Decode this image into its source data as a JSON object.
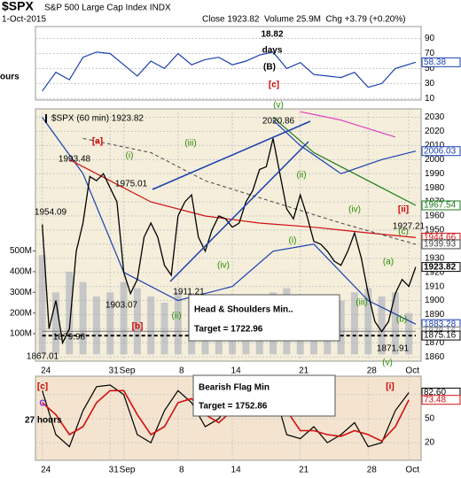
{
  "header": {
    "symbol": "$SPX",
    "name": "S&P 500 Large Cap Index INDX",
    "date": "1-Oct-2015",
    "stats": "Close 1923.82  Volume 25.9M  Chg +3.79 (+0.20%)"
  },
  "chart_data": [
    {
      "type": "line",
      "background": "#ffffff",
      "grid": true,
      "xlim": [
        -0.5,
        27.9
      ],
      "ylim": [
        8,
        106
      ],
      "yticks": [
        90,
        70,
        50,
        30,
        10
      ],
      "series": [
        {
          "color": "#1a3fb0",
          "width": 1.2,
          "tag": true,
          "x": [
            0,
            1,
            2,
            3,
            4,
            5,
            6,
            7,
            8,
            9,
            10,
            11,
            12,
            13,
            14,
            15,
            16,
            17,
            18,
            19,
            20,
            21,
            22,
            23,
            24,
            25,
            26,
            27.5
          ],
          "values": [
            20,
            45,
            35,
            65,
            72,
            70,
            55,
            40,
            60,
            50,
            70,
            55,
            62,
            65,
            55,
            60,
            68,
            72,
            50,
            58,
            42,
            40,
            38,
            45,
            25,
            30,
            50,
            58.38
          ]
        }
      ],
      "annotations": [
        {
          "text": "18.82",
          "color": "#000000"
        },
        {
          "text": "days",
          "color": "#000000"
        },
        {
          "text": "(B)",
          "color": "#000000"
        },
        {
          "text": "[c]",
          "color": "#cc0000"
        },
        {
          "text": "ours",
          "color": "#000000"
        },
        {
          "text": "(v)",
          "color": "#2a8a00"
        }
      ]
    },
    {
      "type": "line",
      "background": "#f4eedb",
      "grid": true,
      "xlim": [
        -0.5,
        27.9
      ],
      "ylim": [
        1857,
        2036
      ],
      "yticks": [
        2030,
        2020,
        2010,
        2000,
        1990,
        1980,
        1970,
        1960,
        1950,
        1940,
        1930,
        1920,
        1910,
        1900,
        1890,
        1880,
        1870,
        1860
      ],
      "y2lim": [
        -33000000,
        1188000000
      ],
      "y2ticks": [
        {
          "value": 500000000,
          "label": "500M"
        },
        {
          "value": 400000000,
          "label": "400M"
        },
        {
          "value": 300000000,
          "label": "300M"
        },
        {
          "value": 200000000,
          "label": "200M"
        },
        {
          "value": 100000000,
          "label": "100M"
        }
      ],
      "xticks": [
        {
          "value": 0,
          "label": "24"
        },
        {
          "value": 5,
          "label": "31"
        },
        {
          "value": 6,
          "label": "Sep"
        },
        {
          "value": 10,
          "label": "8"
        },
        {
          "value": 14,
          "label": "14"
        },
        {
          "value": 19,
          "label": "21"
        },
        {
          "value": 24,
          "label": "28"
        },
        {
          "value": 27,
          "label": "Oct"
        }
      ],
      "series": [
        {
          "type": "bar",
          "axis": "y2",
          "color": "#a7adb8",
          "x": [
            0,
            1,
            2,
            3,
            4,
            5,
            6,
            7,
            8,
            9,
            10,
            11,
            12,
            13,
            14,
            15,
            16,
            17,
            18,
            19,
            20,
            21,
            22,
            23,
            24,
            25,
            26,
            27
          ],
          "values": [
            480000000,
            300000000,
            400000000,
            350000000,
            280000000,
            300000000,
            350000000,
            320000000,
            280000000,
            250000000,
            300000000,
            260000000,
            280000000,
            270000000,
            220000000,
            240000000,
            290000000,
            300000000,
            320000000,
            230000000,
            250000000,
            240000000,
            260000000,
            300000000,
            320000000,
            280000000,
            300000000,
            200000000
          ]
        },
        {
          "color": "#e040c0",
          "width": 1.2,
          "x": [
            19,
            22,
            26
          ],
          "values": [
            2034,
            2028,
            2016
          ]
        },
        {
          "color": "#1a7a1a",
          "width": 1.2,
          "tag": true,
          "x": [
            17,
            20,
            24,
            27.5
          ],
          "values": [
            2030,
            2005,
            1985,
            1967.54
          ]
        },
        {
          "color": "#1a3fb0",
          "width": 1.2,
          "tag": true,
          "x": [
            17,
            19,
            22,
            25,
            27.5
          ],
          "values": [
            2028,
            2010,
            1990,
            2000,
            2006.03
          ]
        },
        {
          "color": "#1a3fb0",
          "width": 1.2,
          "tag": true,
          "x": [
            0,
            3,
            6,
            10,
            14,
            17,
            20,
            24,
            27.5
          ],
          "values": [
            2030,
            1990,
            1920,
            1900,
            1910,
            1935,
            1940,
            1900,
            1883.28
          ]
        },
        {
          "color": "#d01010",
          "width": 1.2,
          "tag": true,
          "x": [
            2,
            5,
            8,
            12,
            16,
            20,
            24,
            27.5
          ],
          "values": [
            2000,
            1985,
            1970,
            1960,
            1955,
            1952,
            1948,
            1944.66
          ]
        },
        {
          "color": "#444444",
          "width": 1,
          "dash": true,
          "tag": true,
          "x": [
            3,
            8,
            12,
            17,
            22,
            27.5
          ],
          "values": [
            2015,
            2005,
            1985,
            1970,
            1955,
            1939.93
          ]
        },
        {
          "color": "#777777",
          "width": 1,
          "tag": true,
          "x": [
            0,
            27.5
          ],
          "values": [
            1878.16,
            1878.16
          ]
        },
        {
          "color": "#000000",
          "width": 2,
          "dash": true,
          "tag": true,
          "x": [
            0,
            27.5
          ],
          "values": [
            1875.16,
            1875.16
          ]
        },
        {
          "name": "$SPX (60 min) 1923.82",
          "color": "#000000",
          "width": 1.3,
          "tag": true,
          "x": [
            0,
            0.5,
            1,
            1.5,
            2,
            2.5,
            3,
            3.5,
            4,
            4.5,
            5,
            5.5,
            6,
            6.5,
            7,
            7.5,
            8,
            8.5,
            9,
            9.5,
            10,
            10.5,
            11,
            11.5,
            12,
            12.5,
            13,
            13.5,
            14,
            14.5,
            15,
            15.5,
            16,
            16.5,
            17,
            17.5,
            18,
            18.5,
            19,
            19.5,
            20,
            20.5,
            21,
            21.5,
            22,
            22.5,
            23,
            23.5,
            24,
            24.5,
            25,
            25.5,
            26,
            26.5,
            27,
            27.5
          ],
          "values": [
            1954,
            1880,
            1900,
            1870,
            1880,
            1935,
            1955,
            1988,
            1985,
            1990,
            1980,
            1970,
            1920,
            1905,
            1915,
            1945,
            1955,
            1945,
            1925,
            1918,
            1960,
            1970,
            1975,
            1945,
            1935,
            1950,
            1960,
            1958,
            1952,
            1955,
            1970,
            1978,
            1993,
            1995,
            2015,
            1990,
            1965,
            1958,
            1975,
            1960,
            1942,
            1940,
            1935,
            1928,
            1925,
            1935,
            1948,
            1930,
            1905,
            1885,
            1878,
            1885,
            1905,
            1915,
            1910,
            1923.82
          ]
        }
      ],
      "annotations": [
        {
          "text": "[a]",
          "color": "#cc0000"
        },
        {
          "text": "1993.48",
          "color": "#000000"
        },
        {
          "text": "(i)",
          "color": "#2a8a00"
        },
        {
          "text": "(iii)",
          "color": "#2a8a00"
        },
        {
          "text": "1975.01",
          "color": "#000000"
        },
        {
          "text": "2020.86",
          "color": "#000000"
        },
        {
          "text": "(ii)",
          "color": "#2a8a00"
        },
        {
          "text": "(i)",
          "color": "#2a8a00"
        },
        {
          "text": "(iv)",
          "color": "#2a8a00"
        },
        {
          "text": "[ii]",
          "color": "#cc0000"
        },
        {
          "text": "(c)",
          "color": "#2a8a00"
        },
        {
          "text": "1927.21",
          "color": "#000000"
        },
        {
          "text": "(a)",
          "color": "#2a8a00"
        },
        {
          "text": "(b)",
          "color": "#2a8a00"
        },
        {
          "text": "(iii)",
          "color": "#2a8a00"
        },
        {
          "text": "(iv)",
          "color": "#2a8a00"
        },
        {
          "text": "(ii)",
          "color": "#2a8a00"
        },
        {
          "text": "1911.21",
          "color": "#000000"
        },
        {
          "text": "1903.07",
          "color": "#000000"
        },
        {
          "text": "1954.09",
          "color": "#000000"
        },
        {
          "text": "1879.98",
          "color": "#000000"
        },
        {
          "text": "1867.01",
          "color": "#000000"
        },
        {
          "text": "[b]",
          "color": "#cc0000"
        },
        {
          "text": "1871.91",
          "color": "#000000"
        },
        {
          "text": "(v)",
          "color": "#2a8a00"
        },
        {
          "text": "Head & Shoulders Min..",
          "color": "#000000"
        },
        {
          "text": "Target = 1722.96",
          "color": "#000000"
        }
      ]
    },
    {
      "type": "line",
      "background": "#f4e4cf",
      "grid": true,
      "xlim": [
        -0.5,
        27.9
      ],
      "ylim": [
        -2,
        103
      ],
      "yticks": [
        80,
        50,
        20
      ],
      "xticks": [
        {
          "value": 0,
          "label": "24"
        },
        {
          "value": 5,
          "label": "31"
        },
        {
          "value": 6,
          "label": "Sep"
        },
        {
          "value": 10,
          "label": "8"
        },
        {
          "value": 14,
          "label": "14"
        },
        {
          "value": 19,
          "label": "21"
        },
        {
          "value": 24,
          "label": "28"
        },
        {
          "value": 27,
          "label": "Oct"
        }
      ],
      "series": [
        {
          "color": "#000000",
          "width": 1.2,
          "tag": true,
          "x": [
            0,
            1,
            2,
            3,
            4,
            5,
            6,
            7,
            8,
            9,
            10,
            11,
            12,
            13,
            14,
            15,
            16,
            17,
            18,
            19,
            20,
            21,
            22,
            23,
            24,
            25,
            26,
            27
          ],
          "values": [
            85,
            30,
            15,
            60,
            90,
            92,
            80,
            30,
            20,
            60,
            85,
            70,
            40,
            50,
            75,
            60,
            85,
            90,
            30,
            25,
            40,
            20,
            30,
            45,
            15,
            20,
            60,
            82.6
          ],
          "value_labels": [
            null,
            null,
            null,
            null,
            null,
            null,
            null,
            null,
            null,
            null,
            null,
            null,
            null,
            null,
            null,
            null,
            null,
            null,
            null,
            null,
            null,
            null,
            null,
            null,
            null,
            null,
            null,
            "82.60"
          ]
        },
        {
          "color": "#d01010",
          "width": 1.6,
          "tag": true,
          "x": [
            0,
            1,
            2,
            3,
            4,
            5,
            6,
            7,
            8,
            9,
            10,
            11,
            12,
            13,
            14,
            15,
            16,
            17,
            18,
            19,
            20,
            21,
            22,
            23,
            24,
            25,
            26,
            27
          ],
          "values": [
            70,
            55,
            30,
            40,
            70,
            85,
            85,
            55,
            30,
            40,
            70,
            75,
            55,
            45,
            60,
            65,
            75,
            85,
            60,
            35,
            35,
            30,
            28,
            35,
            30,
            22,
            40,
            73.48
          ]
        }
      ],
      "annotations": [
        {
          "text": "[c]",
          "color": "#cc0000"
        },
        {
          "text": "C",
          "color": "#8a2be2"
        },
        {
          "text": "27 hours",
          "color": "#000000"
        },
        {
          "text": "[i]",
          "color": "#cc0000"
        },
        {
          "text": "Bearish Flag Min",
          "color": "#000000"
        },
        {
          "text": "Target = 1752.86",
          "color": "#000000"
        }
      ]
    }
  ]
}
